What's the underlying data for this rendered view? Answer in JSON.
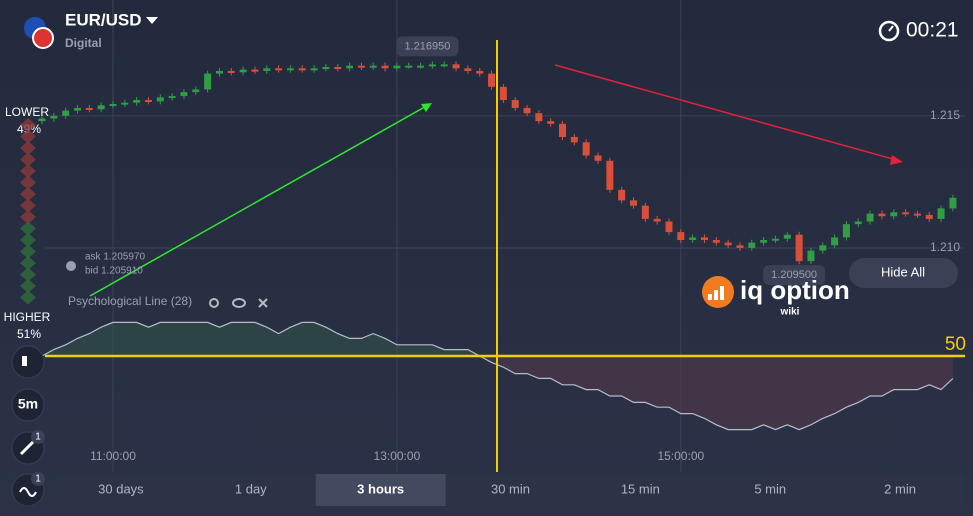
{
  "header": {
    "asset": "EUR/USD",
    "type": "Digital",
    "timer": "00:21"
  },
  "sidebar": {
    "lower_label": "LOWER",
    "lower_pct": "49%",
    "higher_label": "HIGHER",
    "higher_pct": "51%",
    "timeframe": "5m",
    "badges": [
      "1",
      "1"
    ]
  },
  "chart_data": {
    "type": "candlestick",
    "x": [
      "10:30:00",
      "10:35:00",
      "10:40:00",
      "10:45:00",
      "10:50:00",
      "10:55:00",
      "11:00:00",
      "11:05:00",
      "11:10:00",
      "11:15:00",
      "11:20:00",
      "11:25:00",
      "11:30:00",
      "11:35:00",
      "11:40:00",
      "11:45:00",
      "11:50:00",
      "11:55:00",
      "12:00:00",
      "12:05:00",
      "12:10:00",
      "12:15:00",
      "12:20:00",
      "12:25:00",
      "12:30:00",
      "12:35:00",
      "12:40:00",
      "12:45:00",
      "12:50:00",
      "12:55:00",
      "13:00:00",
      "13:05:00",
      "13:10:00",
      "13:15:00",
      "13:20:00",
      "13:25:00",
      "13:30:00",
      "13:35:00",
      "13:40:00",
      "13:45:00",
      "13:50:00",
      "13:55:00",
      "14:00:00",
      "14:05:00",
      "14:10:00",
      "14:15:00",
      "14:20:00",
      "14:25:00",
      "14:30:00",
      "14:35:00",
      "14:40:00",
      "14:45:00",
      "14:50:00",
      "14:55:00",
      "15:00:00",
      "15:05:00",
      "15:10:00",
      "15:15:00",
      "15:20:00",
      "15:25:00",
      "15:30:00",
      "15:35:00",
      "15:40:00",
      "15:45:00",
      "15:50:00",
      "15:55:00",
      "16:00:00",
      "16:05:00",
      "16:10:00",
      "16:15:00",
      "16:20:00",
      "16:25:00",
      "16:30:00",
      "16:35:00",
      "16:40:00",
      "16:45:00",
      "16:50:00",
      "16:55:00"
    ],
    "open": [
      1.2148,
      1.2149,
      1.215,
      1.2152,
      1.2153,
      1.21525,
      1.2154,
      1.21545,
      1.2155,
      1.2156,
      1.21555,
      1.2157,
      1.21575,
      1.2159,
      1.216,
      1.2166,
      1.2167,
      1.21665,
      1.21675,
      1.2167,
      1.2168,
      1.21675,
      1.2168,
      1.21675,
      1.2168,
      1.21685,
      1.2168,
      1.2169,
      1.21685,
      1.2169,
      1.2168,
      1.2169,
      1.2169,
      1.2169,
      1.21695,
      1.21695,
      1.2168,
      1.2167,
      1.2166,
      1.2161,
      1.2156,
      1.2153,
      1.2151,
      1.2148,
      1.2147,
      1.2142,
      1.214,
      1.2135,
      1.2133,
      1.2122,
      1.2118,
      1.2116,
      1.2111,
      1.211,
      1.2106,
      1.2103,
      1.2104,
      1.2103,
      1.2102,
      1.2101,
      1.21,
      1.2102,
      1.2103,
      1.21035,
      1.2105,
      1.2095,
      1.2099,
      1.2101,
      1.2104,
      1.2109,
      1.211,
      1.2113,
      1.2112,
      1.21135,
      1.2113,
      1.21125,
      1.2111,
      1.2115
    ],
    "close": [
      1.2149,
      1.215,
      1.2152,
      1.2153,
      1.21525,
      1.2154,
      1.21545,
      1.2155,
      1.2156,
      1.21555,
      1.2157,
      1.21575,
      1.2159,
      1.216,
      1.2166,
      1.2167,
      1.21665,
      1.21675,
      1.2167,
      1.2168,
      1.21675,
      1.2168,
      1.21675,
      1.2168,
      1.21685,
      1.2168,
      1.2169,
      1.21685,
      1.2169,
      1.2168,
      1.2169,
      1.2169,
      1.2169,
      1.21695,
      1.21695,
      1.2168,
      1.2167,
      1.2166,
      1.2161,
      1.2156,
      1.2153,
      1.2151,
      1.2148,
      1.2147,
      1.2142,
      1.214,
      1.2135,
      1.2133,
      1.2122,
      1.2118,
      1.2116,
      1.2111,
      1.211,
      1.2106,
      1.2103,
      1.2104,
      1.2103,
      1.2102,
      1.2101,
      1.21,
      1.2102,
      1.2103,
      1.21035,
      1.2105,
      1.2095,
      1.2099,
      1.2101,
      1.2104,
      1.2109,
      1.211,
      1.2113,
      1.2112,
      1.21135,
      1.2113,
      1.21125,
      1.2111,
      1.2115,
      1.2119
    ],
    "ylim": [
      1.2075,
      1.2195
    ],
    "yticks": [
      1.215,
      {
        "value": 1.21,
        "label": "1.210"
      }
    ],
    "xticks": [
      "11:00:00",
      "13:00:00",
      "15:00:00"
    ],
    "up_color": "#2f9e44",
    "down_color": "#d9503a",
    "high_label": {
      "value": 1.21695,
      "label": "1.216950"
    },
    "low_label": {
      "value": 1.2095,
      "label": "1.209500"
    },
    "ask": "ask 1.205970",
    "bid": "bid 1.205910"
  },
  "indicator": {
    "title": "Psychological Line (28)",
    "ylim": [
      0,
      100
    ],
    "level": 50,
    "values": [
      50,
      54,
      57,
      61,
      64,
      68,
      71,
      71,
      71,
      68,
      71,
      71,
      71,
      71,
      71,
      68,
      71,
      71,
      71,
      68,
      64,
      68,
      71,
      71,
      68,
      64,
      61,
      61,
      64,
      61,
      57,
      57,
      57,
      57,
      54,
      54,
      54,
      50,
      46,
      43,
      39,
      39,
      36,
      36,
      32,
      32,
      29,
      29,
      25,
      25,
      21,
      21,
      18,
      18,
      14,
      14,
      11,
      7,
      4,
      4,
      4,
      7,
      4,
      7,
      4,
      7,
      11,
      14,
      18,
      21,
      25,
      25,
      29,
      29,
      29,
      32,
      29,
      36
    ]
  },
  "hide_all": "Hide All",
  "watermark": {
    "brand": "iq option",
    "sub": "wiki"
  },
  "periods": {
    "options": [
      "30 days",
      "1 day",
      "3 hours",
      "30 min",
      "15 min",
      "5 min",
      "2 min"
    ],
    "active": 2
  }
}
